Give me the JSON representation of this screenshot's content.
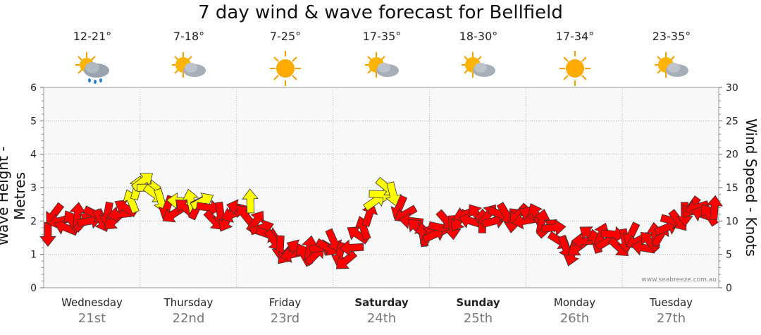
{
  "title": "7 day wind & wave forecast for Bellfield",
  "credit": "www.seabreeze.com.au",
  "days": [
    {
      "day": "Wednesday",
      "date": "21st",
      "temp": "12-21°",
      "icon": "sun-cloud-rain-icon",
      "bold": false
    },
    {
      "day": "Thursday",
      "date": "22nd",
      "temp": "7-18°",
      "icon": "sun-cloud-icon",
      "bold": false
    },
    {
      "day": "Friday",
      "date": "23rd",
      "temp": "7-25°",
      "icon": "sun-icon",
      "bold": false
    },
    {
      "day": "Saturday",
      "date": "24th",
      "temp": "17-35°",
      "icon": "sun-cloud-icon",
      "bold": true
    },
    {
      "day": "Sunday",
      "date": "25th",
      "temp": "18-30°",
      "icon": "sun-cloud-icon",
      "bold": true
    },
    {
      "day": "Monday",
      "date": "26th",
      "temp": "17-34°",
      "icon": "sun-icon",
      "bold": false
    },
    {
      "day": "Tuesday",
      "date": "27th",
      "temp": "23-35°",
      "icon": "sun-cloud-icon",
      "bold": false
    }
  ],
  "chart_data": {
    "type": "line",
    "title": "7 day wind & wave forecast for Bellfield",
    "ylabel_left": "Wave Height - Metres",
    "ylabel_right": "Wind Speed - Knots",
    "ylim_left": [
      0,
      6
    ],
    "ylim_right": [
      0,
      30
    ],
    "yticks_left": [
      "0",
      "1",
      "2",
      "3",
      "4",
      "5",
      "6"
    ],
    "yticks_right": [
      "0",
      "5",
      "10",
      "15",
      "20",
      "25",
      "30"
    ],
    "grid": true,
    "series": [
      {
        "name": "Wind Speed - Knots",
        "unit": "knots",
        "colors": {
          "normal": "#ff0000",
          "strong": "#ffff00"
        },
        "values": [
          8,
          11,
          10,
          9,
          10,
          11,
          10,
          10,
          11,
          10,
          11,
          10,
          11,
          12,
          13,
          15,
          16,
          15,
          14,
          13,
          12,
          11,
          13,
          12,
          13,
          12,
          13,
          12,
          10,
          11,
          10,
          11,
          12,
          11,
          13,
          10,
          9,
          8,
          7,
          6,
          5,
          5,
          6,
          5,
          6,
          5,
          6,
          6,
          7,
          5,
          4,
          6,
          8,
          9,
          11,
          13,
          14,
          15,
          14,
          12,
          11,
          10,
          9,
          8,
          8,
          8,
          9,
          10,
          9,
          10,
          11,
          10,
          11,
          10,
          11,
          10,
          11,
          11,
          10,
          11,
          10,
          11,
          11,
          10,
          9,
          9,
          7,
          6,
          5,
          6,
          7,
          8,
          7,
          8,
          7,
          8,
          6,
          7,
          8,
          7,
          6,
          7,
          8,
          8,
          9,
          10,
          10,
          11,
          12,
          12,
          11,
          11,
          12
        ]
      }
    ]
  }
}
